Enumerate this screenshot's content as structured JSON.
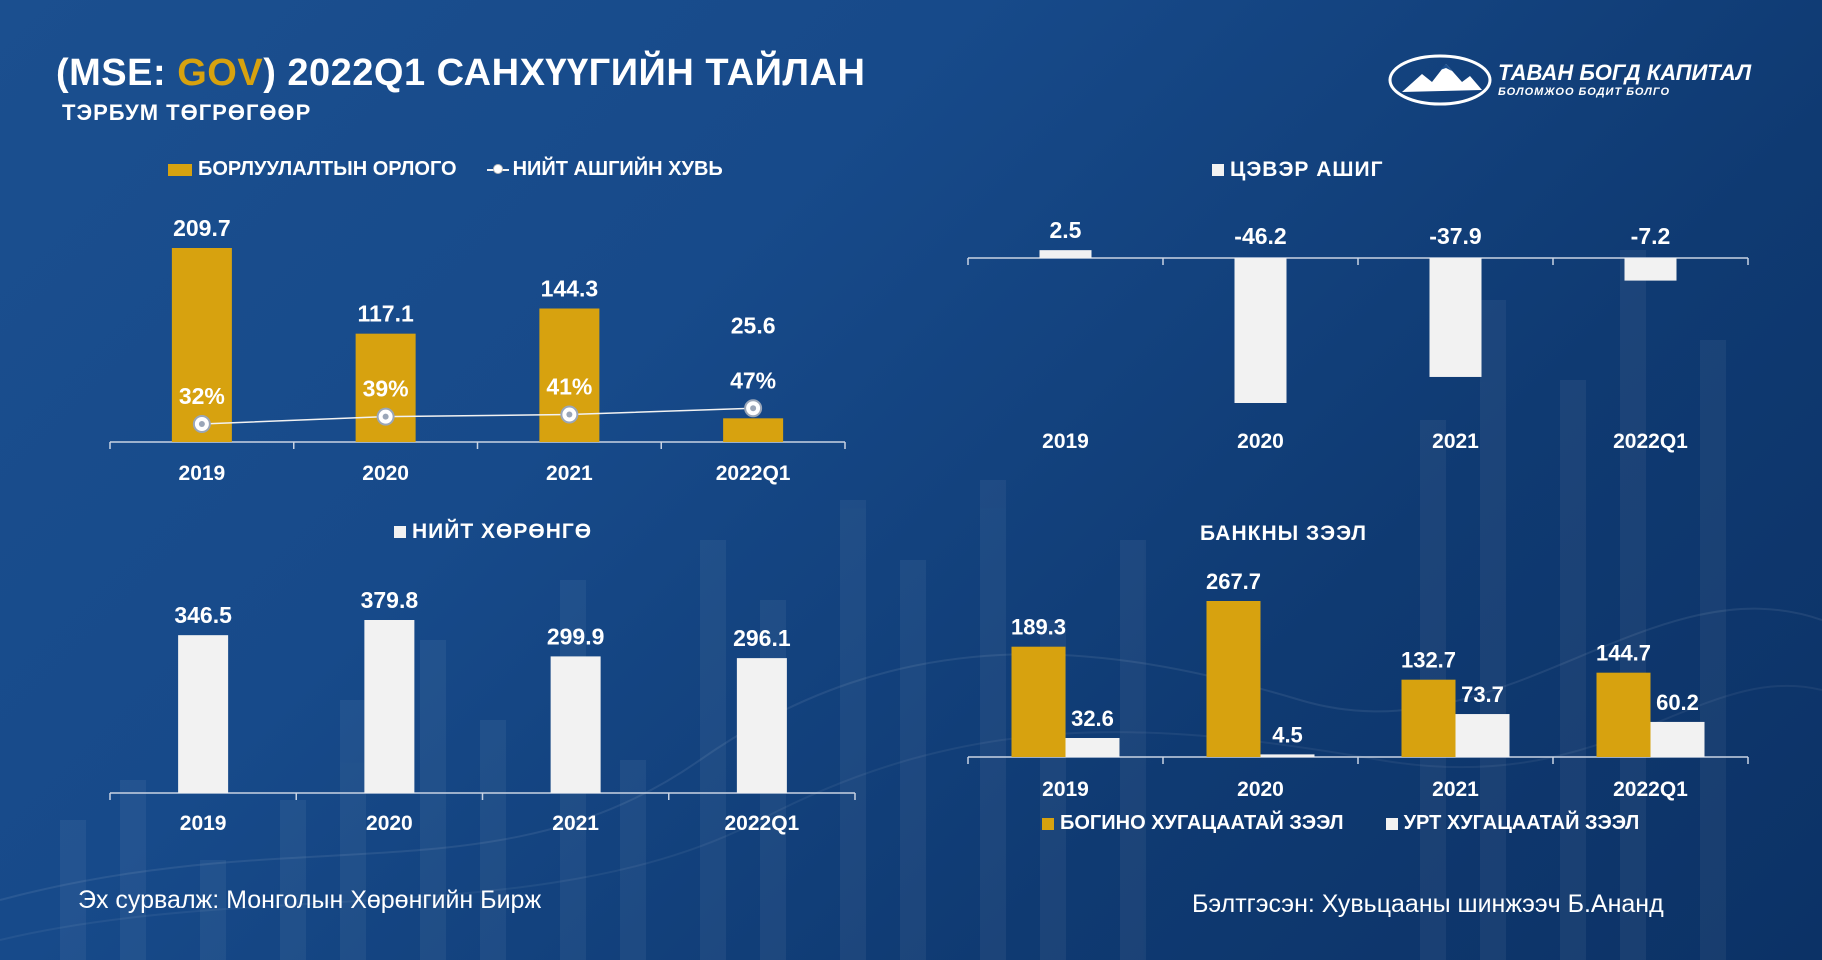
{
  "header": {
    "title_prefix": "(MSE: ",
    "title_ticker": "GOV",
    "title_suffix": ") 2022Q1 САНХҮҮГИЙН ТАЙЛАН",
    "subtitle": "ТЭРБУМ ТӨГРӨГӨӨР"
  },
  "logo": {
    "name": "ТАВАН БОГД КАПИТАЛ",
    "tagline": "БОЛОМЖОО БОДИТ БОЛГО",
    "icon": "mountain-logo-icon"
  },
  "colors": {
    "background": "#174a8a",
    "gold": "#d7a20f",
    "white": "#f2f2f2"
  },
  "chart_data": [
    {
      "id": "revenue",
      "type": "bar",
      "categories": [
        "2019",
        "2020",
        "2021",
        "2022Q1"
      ],
      "series": [
        {
          "name": "БОРЛУУЛАЛТЫН ОРЛОГО",
          "values": [
            209.7,
            117.1,
            144.3,
            25.6
          ],
          "color": "#d7a20f",
          "labels": [
            "209.7",
            "117.1",
            "144.3",
            "25.6"
          ]
        },
        {
          "name": "НИЙТ АШГИЙН ХУВЬ",
          "type": "line",
          "values": [
            32,
            39,
            41,
            47
          ],
          "labels": [
            "32%",
            "39%",
            "41%",
            "47%"
          ],
          "color": "#f2f2f2"
        }
      ],
      "legend_position": "top"
    },
    {
      "id": "net-profit",
      "type": "bar",
      "title": "ЦЭВЭР АШИГ",
      "categories": [
        "2019",
        "2020",
        "2021",
        "2022Q1"
      ],
      "series": [
        {
          "name": "ЦЭВЭР АШИГ",
          "values": [
            2.5,
            -46.2,
            -37.9,
            -7.2
          ],
          "color": "#f2f2f2",
          "labels": [
            "2.5",
            "-46.2",
            "-37.9",
            "-7.2"
          ]
        }
      ]
    },
    {
      "id": "total-assets",
      "type": "bar",
      "title": "НИЙТ ХӨРӨНГӨ",
      "categories": [
        "2019",
        "2020",
        "2021",
        "2022Q1"
      ],
      "series": [
        {
          "name": "НИЙТ ХӨРӨНГӨ",
          "values": [
            346.5,
            379.8,
            299.9,
            296.1
          ],
          "color": "#f2f2f2",
          "labels": [
            "346.5",
            "379.8",
            "299.9",
            "296.1"
          ]
        }
      ]
    },
    {
      "id": "bank-loans",
      "type": "bar",
      "title": "БАНКНЫ ЗЭЭЛ",
      "categories": [
        "2019",
        "2020",
        "2021",
        "2022Q1"
      ],
      "series": [
        {
          "name": "БОГИНО ХУГАЦААТАЙ ЗЭЭЛ",
          "values": [
            189.3,
            267.7,
            132.7,
            144.7
          ],
          "color": "#d7a20f",
          "labels": [
            "189.3",
            "267.7",
            "132.7",
            "144.7"
          ]
        },
        {
          "name": "УРТ ХУГАЦААТАЙ ЗЭЭЛ",
          "values": [
            32.6,
            4.5,
            73.7,
            60.2
          ],
          "color": "#f2f2f2",
          "labels": [
            "32.6",
            "4.5",
            "73.7",
            "60.2"
          ]
        }
      ],
      "legend_position": "bottom"
    }
  ],
  "footer": {
    "source": "Эх сурвалж: Монголын Хөрөнгийн Бирж",
    "prepared": "Бэлтгэсэн: Хувьцааны шинжээч Б.Ананд"
  }
}
